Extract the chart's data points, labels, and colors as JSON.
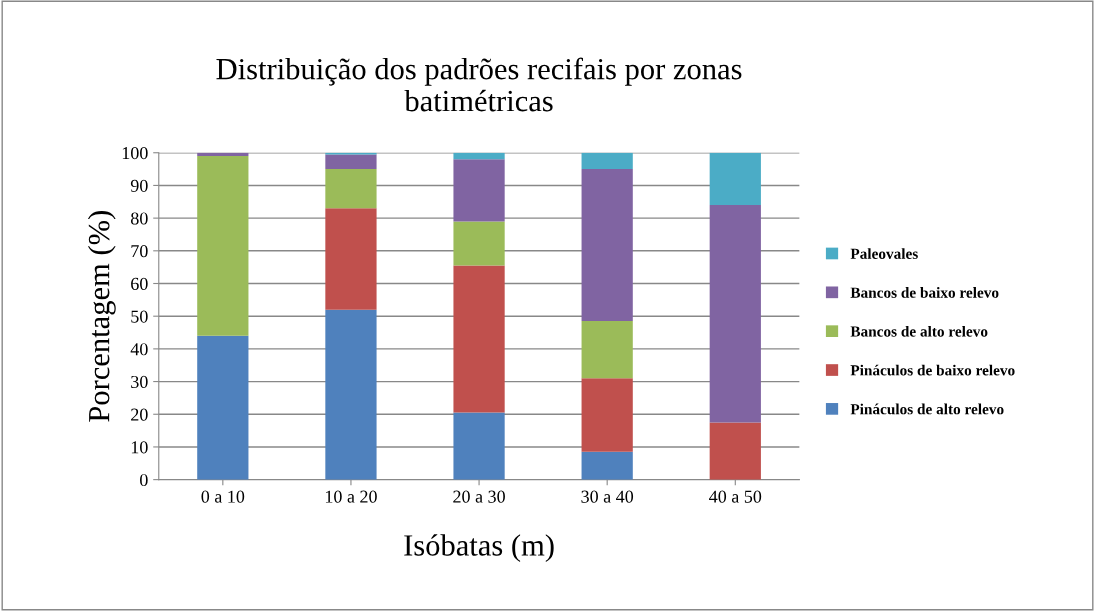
{
  "chart_data": {
    "type": "bar",
    "stacked": true,
    "title": "Distribuição dos padrões recifais por zonas\nbatimétricas",
    "xlabel": "Isóbatas (m)",
    "ylabel": "Porcentagem (%)",
    "categories": [
      "0 a 10",
      "10 a 20",
      "20 a 30",
      "30 a 40",
      "40 a 50"
    ],
    "series": [
      {
        "name": "Pináculos de alto relevo",
        "color": "#4f81bd",
        "values": [
          44,
          52,
          20.5,
          8.5,
          0
        ]
      },
      {
        "name": "Pináculos de baixo relevo",
        "color": "#c0504d",
        "values": [
          0,
          31,
          45,
          22.5,
          17.5
        ]
      },
      {
        "name": "Bancos de alto relevo",
        "color": "#9bbb59",
        "values": [
          55,
          12,
          13.5,
          17.5,
          0
        ]
      },
      {
        "name": "Bancos de baixo relevo",
        "color": "#8064a2",
        "values": [
          1,
          4.5,
          19,
          46.5,
          66.5
        ]
      },
      {
        "name": "Paleovales",
        "color": "#4bacc6",
        "values": [
          0,
          0.5,
          2,
          5,
          16
        ]
      }
    ],
    "ylim": [
      0,
      100
    ],
    "yticks": [
      0,
      10,
      20,
      30,
      40,
      50,
      60,
      70,
      80,
      90,
      100
    ],
    "grid": "y",
    "legend": "right"
  }
}
